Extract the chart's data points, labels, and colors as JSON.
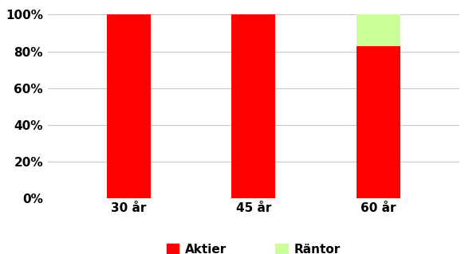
{
  "categories": [
    "30 år",
    "45 år",
    "60 år"
  ],
  "aktier": [
    1.0,
    1.0,
    0.83
  ],
  "rantor": [
    0.0,
    0.0,
    0.17
  ],
  "aktier_color": "#FF0000",
  "rantor_color": "#CCFF99",
  "background_color": "#FFFFFF",
  "grid_color": "#C8C8C8",
  "yticks": [
    0.0,
    0.2,
    0.4,
    0.6,
    0.8,
    1.0
  ],
  "ytick_labels": [
    "0%",
    "20%",
    "40%",
    "60%",
    "80%",
    "100%"
  ],
  "legend_aktier": "Aktier",
  "legend_rantor": "Räntor",
  "bar_width": 0.35
}
